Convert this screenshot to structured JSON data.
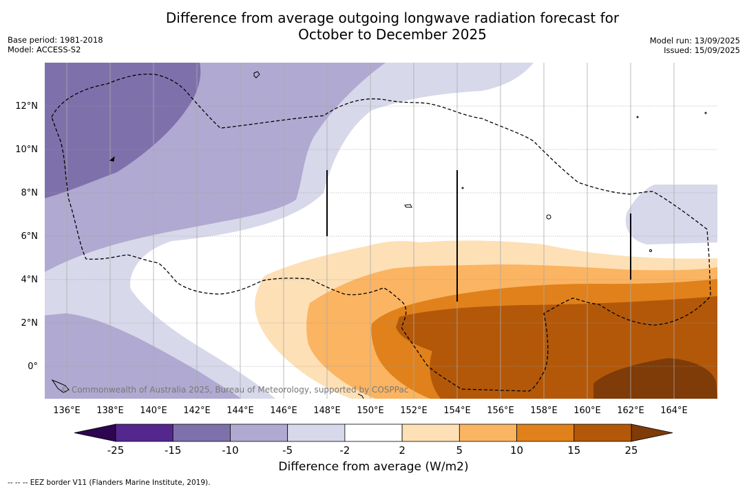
{
  "title": {
    "line1": "Difference from average outgoing longwave radiation forecast for",
    "line2": "October to December 2025"
  },
  "meta_left": {
    "base_period": "Base period: 1981-2018",
    "model": "Model: ACCESS-S2"
  },
  "meta_right": {
    "model_run": "Model run: 13/09/2025",
    "issued": "Issued: 15/09/2025"
  },
  "map": {
    "lat_labels": [
      "12°N",
      "10°N",
      "8°N",
      "6°N",
      "4°N",
      "2°N",
      "0°"
    ],
    "lon_labels": [
      "136°E",
      "138°E",
      "140°E",
      "142°E",
      "144°E",
      "146°E",
      "148°E",
      "150°E",
      "152°E",
      "154°E",
      "156°E",
      "158°E",
      "160°E",
      "162°E",
      "164°E"
    ],
    "copyright": "© Commonwealth of Australia 2025, Bureau of Meteorology, supported by COSPPac"
  },
  "colorbar": {
    "ticks": [
      "-25",
      "-15",
      "-10",
      "-5",
      "-2",
      "2",
      "5",
      "10",
      "15",
      "25"
    ],
    "colors": [
      "#54278f",
      "#7e71ab",
      "#b0a9d1",
      "#d8d8eb",
      "#ffffff",
      "#fde0b6",
      "#fbb461",
      "#e0811b",
      "#b35809"
    ],
    "under_color": "#2d0550",
    "over_color": "#7f3b08",
    "label": "Difference from average (W/m2)"
  },
  "footer": "--  --  -- EEZ border V11 (Flanders Marine Institute, 2019)."
}
